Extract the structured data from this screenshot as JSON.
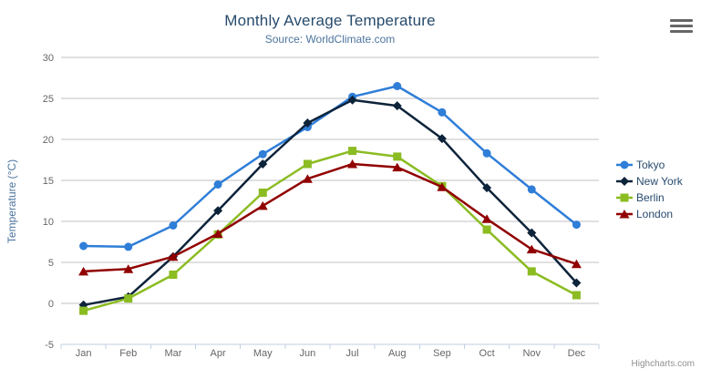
{
  "chart_data": {
    "type": "line",
    "title": "Monthly Average Temperature",
    "subtitle": "Source: WorldClimate.com",
    "categories": [
      "Jan",
      "Feb",
      "Mar",
      "Apr",
      "May",
      "Jun",
      "Jul",
      "Aug",
      "Sep",
      "Oct",
      "Nov",
      "Dec"
    ],
    "xlabel": "",
    "ylabel": "Temperature (°C)",
    "ylim": [
      -5,
      30
    ],
    "ytick_interval": 5,
    "yticks": [
      -5,
      0,
      5,
      10,
      15,
      20,
      25,
      30
    ],
    "grid": true,
    "legend_position": "right",
    "series": [
      {
        "name": "Tokyo",
        "color": "#2f7ed8",
        "marker": "circle",
        "values": [
          7.0,
          6.9,
          9.5,
          14.5,
          18.2,
          21.5,
          25.2,
          26.5,
          23.3,
          18.3,
          13.9,
          9.6
        ]
      },
      {
        "name": "New York",
        "color": "#0d233a",
        "marker": "diamond",
        "values": [
          -0.2,
          0.8,
          5.7,
          11.3,
          17.0,
          22.0,
          24.8,
          24.1,
          20.1,
          14.1,
          8.6,
          2.5
        ]
      },
      {
        "name": "Berlin",
        "color": "#8bbc21",
        "marker": "square",
        "values": [
          -0.9,
          0.6,
          3.5,
          8.4,
          13.5,
          17.0,
          18.6,
          17.9,
          14.3,
          9.0,
          3.9,
          1.0
        ]
      },
      {
        "name": "London",
        "color": "#910000",
        "marker": "triangle",
        "values": [
          3.9,
          4.2,
          5.7,
          8.5,
          11.9,
          15.2,
          17.0,
          16.6,
          14.2,
          10.3,
          6.6,
          4.8
        ]
      }
    ]
  },
  "credits": {
    "label": "Highcharts.com"
  },
  "icons": {
    "export_menu": "hamburger-menu-icon"
  },
  "theme": {
    "background": "#ffffff",
    "title_color": "#274b6d",
    "subtitle_color": "#4d759e",
    "axis_title_color": "#4d759e",
    "tick_label_color": "#666666",
    "grid_color": "#c0c0c0",
    "axis_line_color": "#c0d0e0",
    "legend_text_color": "#274b6d",
    "credits_color": "#909090",
    "export_icon_color": "#666666"
  }
}
